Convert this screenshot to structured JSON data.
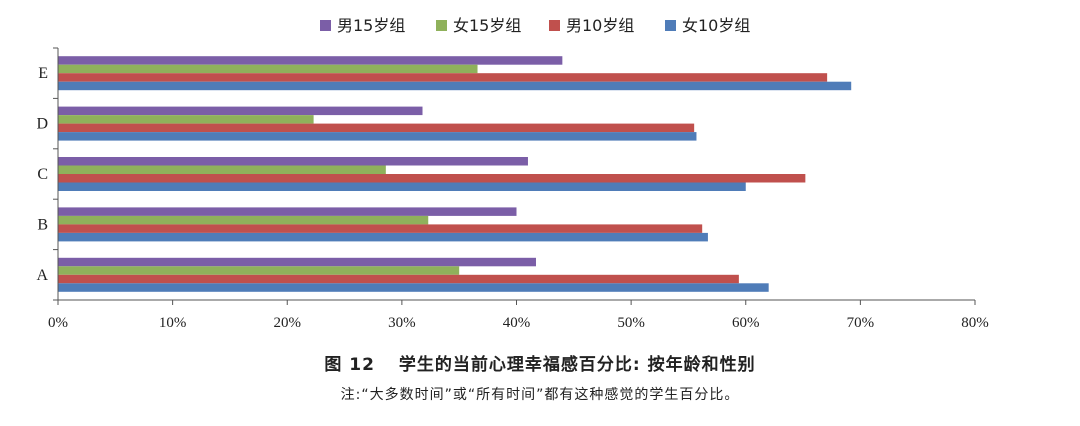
{
  "chart_data": {
    "type": "bar",
    "orientation": "horizontal",
    "categories": [
      "A",
      "B",
      "C",
      "D",
      "E"
    ],
    "series": [
      {
        "name": "男15岁组",
        "color": "#7b5ea7",
        "values": [
          41.7,
          40.0,
          41.0,
          31.8,
          44.0
        ]
      },
      {
        "name": "女15岁组",
        "color": "#8fb15b",
        "values": [
          35.0,
          32.3,
          28.6,
          22.3,
          36.6
        ]
      },
      {
        "name": "男10岁组",
        "color": "#c0504d",
        "values": [
          59.4,
          56.2,
          65.2,
          55.5,
          67.1
        ]
      },
      {
        "name": "女10岁组",
        "color": "#4f7cb8",
        "values": [
          62.0,
          56.7,
          60.0,
          55.7,
          69.2
        ]
      }
    ],
    "xlim": [
      0,
      80
    ],
    "xticks": [
      0,
      10,
      20,
      30,
      40,
      50,
      60,
      70,
      80
    ],
    "xtick_labels": [
      "0%",
      "10%",
      "20%",
      "30%",
      "40%",
      "50%",
      "60%",
      "70%",
      "80%"
    ],
    "grid": false,
    "legend_position": "top-center"
  },
  "caption": {
    "figure_number": "图 12",
    "title": "学生的当前心理幸福感百分比: 按年龄和性别",
    "note": "注:“大多数时间”或“所有时间”都有这种感觉的学生百分比。"
  }
}
